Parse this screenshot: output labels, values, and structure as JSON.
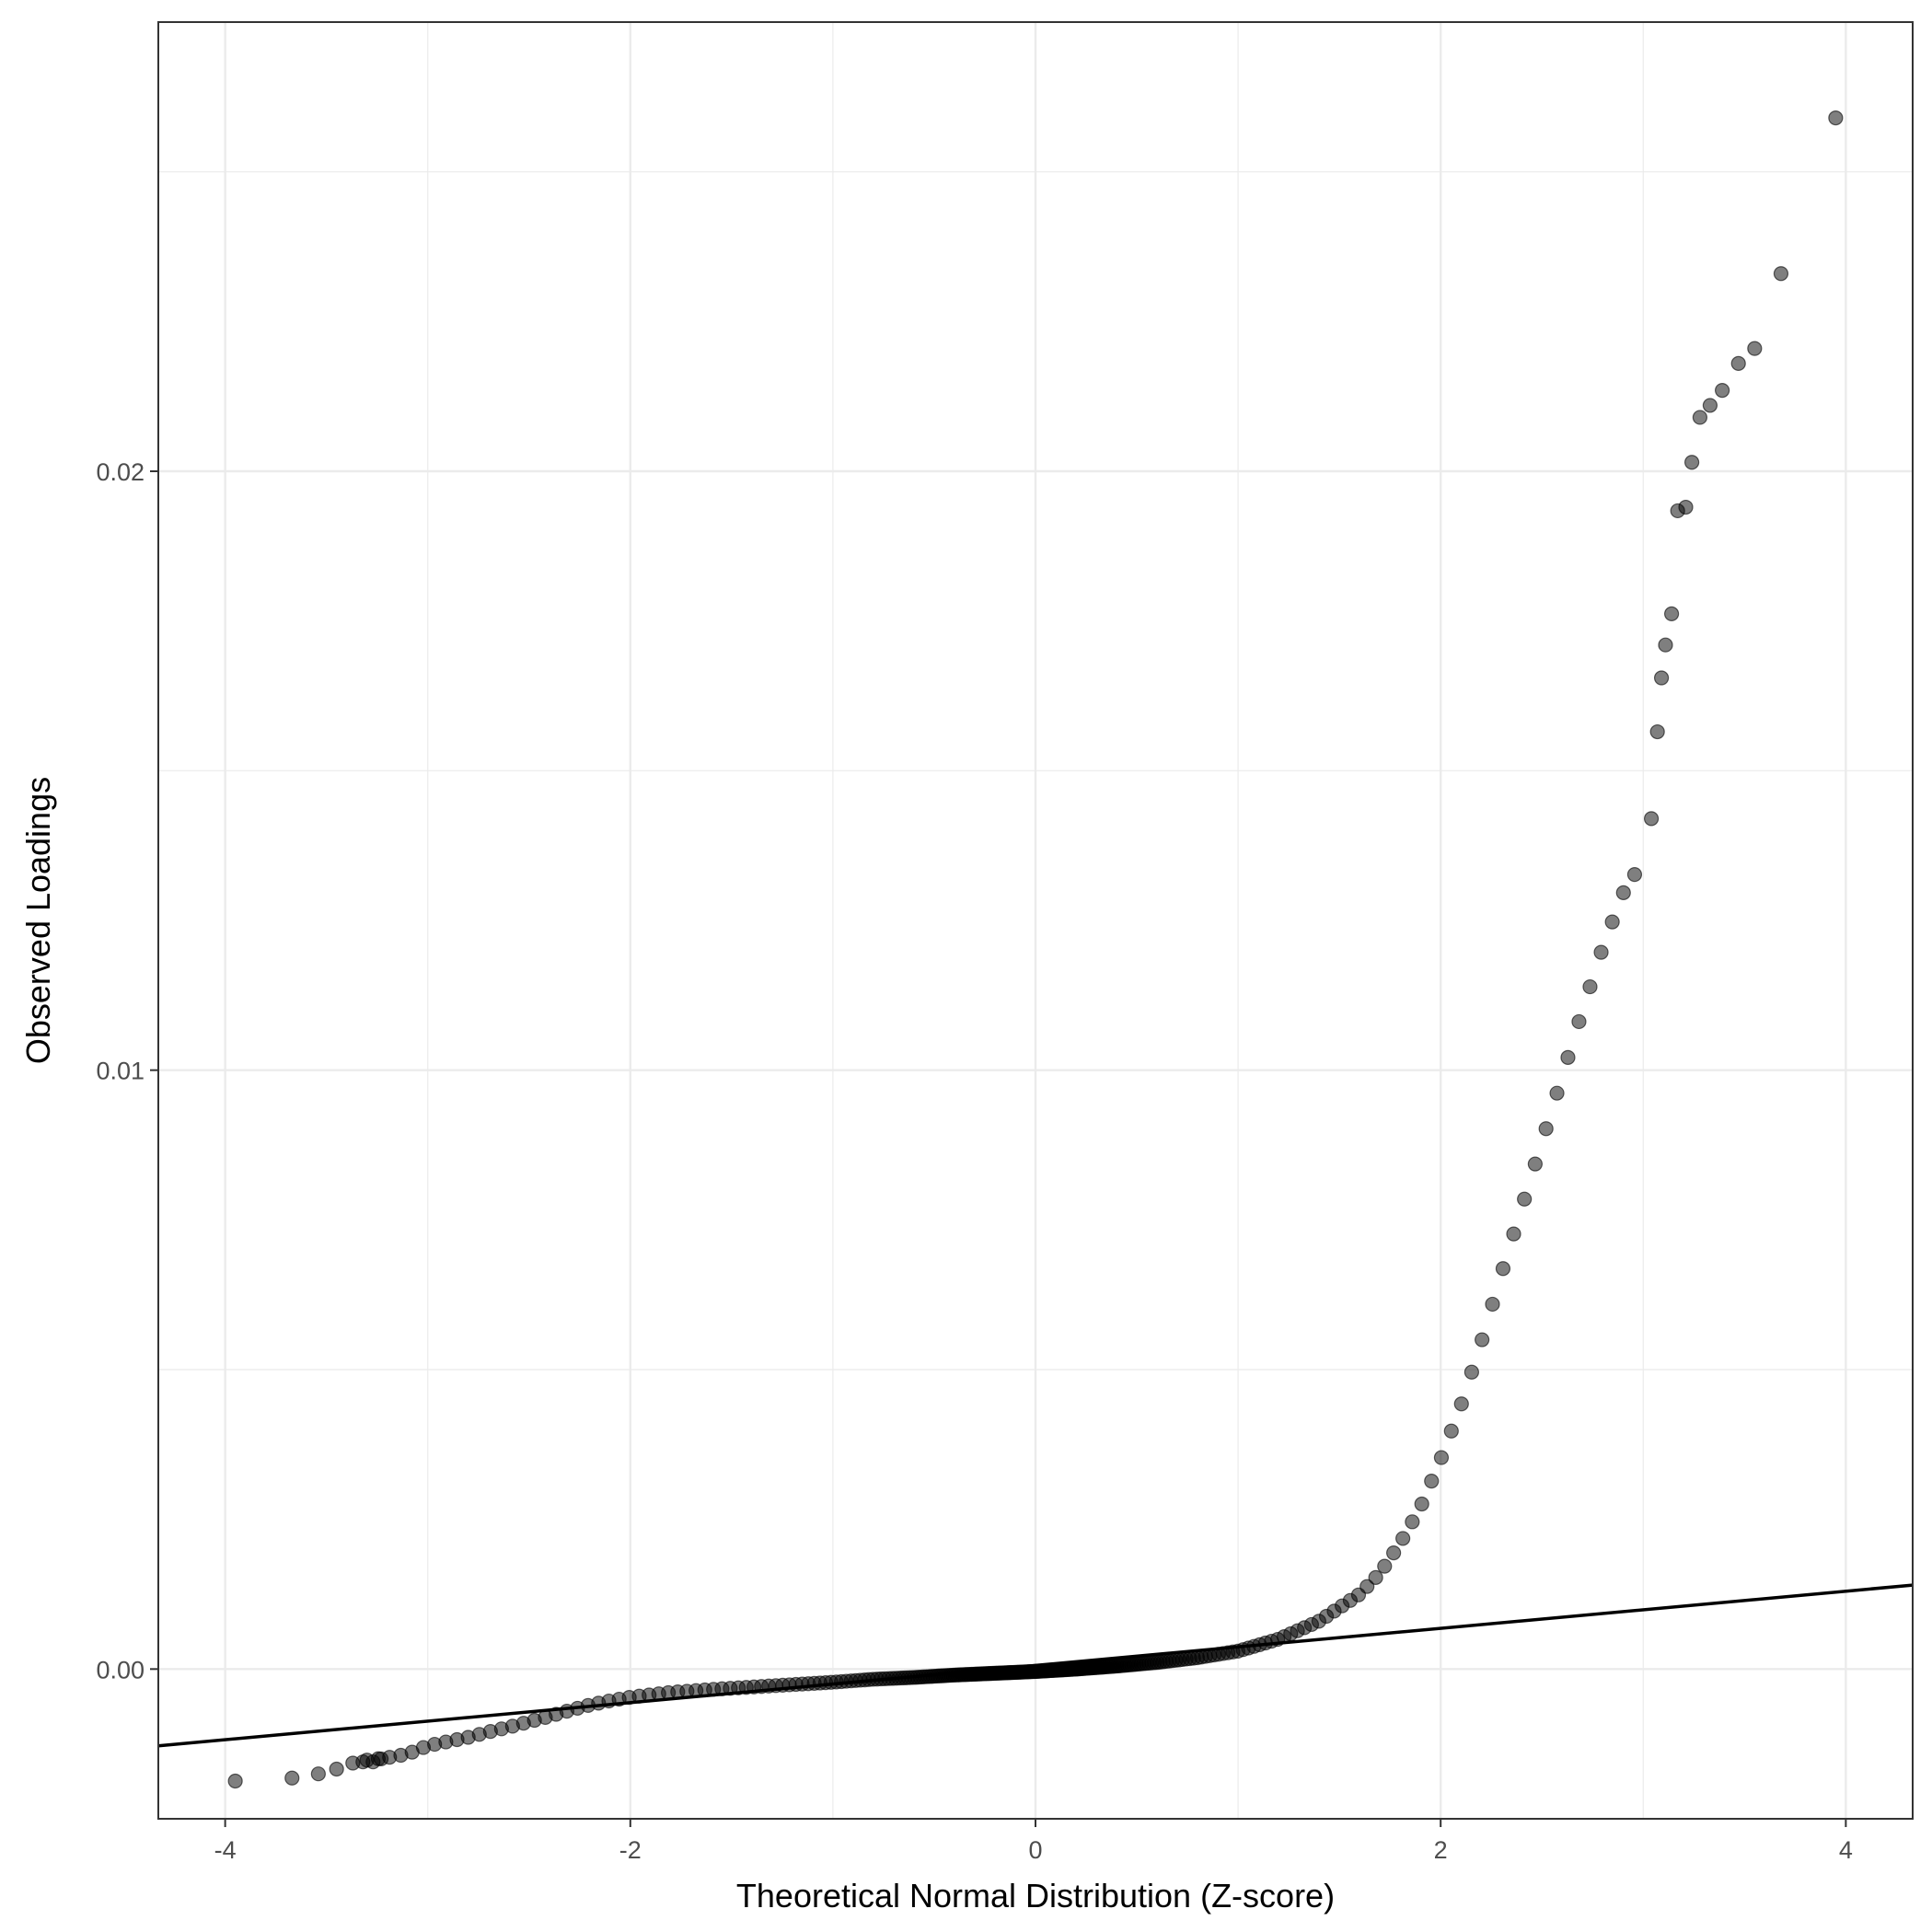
{
  "chart_data": {
    "type": "scatter",
    "title": "",
    "xlabel": "Theoretical Normal Distribution (Z-score)",
    "ylabel": "Observed Loadings",
    "xlim": [
      -4.33,
      4.33
    ],
    "ylim": [
      -0.0025,
      0.0275
    ],
    "x_ticks": [
      -4,
      -2,
      0,
      2,
      4
    ],
    "x_tick_labels": [
      "-4",
      "-2",
      "0",
      "2",
      "4"
    ],
    "y_ticks": [
      0.0,
      0.01,
      0.02
    ],
    "y_tick_labels": [
      "0.00",
      "0.01",
      "0.02"
    ],
    "grid": true,
    "legend": "none",
    "reference_line": {
      "slope": 0.00031,
      "intercept": 6e-05
    },
    "curve": {
      "x_range": [
        -3.3,
        3.0
      ],
      "points": [
        [
          -3.3,
          -0.00152
        ],
        [
          -3.2,
          -0.00148
        ],
        [
          -3.1,
          -0.00142
        ],
        [
          -3.0,
          -0.00128
        ],
        [
          -2.9,
          -0.00121
        ],
        [
          -2.8,
          -0.00114
        ],
        [
          -2.7,
          -0.00105
        ],
        [
          -2.6,
          -0.00097
        ],
        [
          -2.5,
          -0.00088
        ],
        [
          -2.4,
          -0.00079
        ],
        [
          -2.3,
          -0.00069
        ],
        [
          -2.2,
          -0.0006
        ],
        [
          -2.1,
          -0.00053
        ],
        [
          -2.0,
          -0.00047
        ],
        [
          -1.9,
          -0.00043
        ],
        [
          -1.8,
          -0.00039
        ],
        [
          -1.6,
          -0.00034
        ],
        [
          -1.4,
          -0.0003
        ],
        [
          -1.2,
          -0.00026
        ],
        [
          -1.0,
          -0.00022
        ],
        [
          -0.8,
          -0.00017
        ],
        [
          -0.6,
          -0.00014
        ],
        [
          -0.4,
          -0.0001
        ],
        [
          -0.2,
          -7e-05
        ],
        [
          0.0,
          -4e-05
        ],
        [
          0.2,
          0.0
        ],
        [
          0.4,
          5e-05
        ],
        [
          0.6,
          0.00011
        ],
        [
          0.8,
          0.00019
        ],
        [
          1.0,
          0.0003
        ],
        [
          1.2,
          0.0005
        ],
        [
          1.4,
          0.0008
        ],
        [
          1.6,
          0.00125
        ],
        [
          1.7,
          0.0016
        ],
        [
          1.8,
          0.0021
        ],
        [
          1.9,
          0.0027
        ],
        [
          2.0,
          0.0035
        ],
        [
          2.1,
          0.0044
        ],
        [
          2.2,
          0.00545
        ],
        [
          2.3,
          0.0066
        ],
        [
          2.4,
          0.0077
        ],
        [
          2.5,
          0.0088
        ],
        [
          2.6,
          0.0099
        ],
        [
          2.7,
          0.011
        ],
        [
          2.8,
          0.01205
        ],
        [
          2.9,
          0.01295
        ],
        [
          3.0,
          0.0135
        ]
      ]
    },
    "extreme_points": [
      {
        "x": -3.95,
        "y": -0.00187
      },
      {
        "x": -3.67,
        "y": -0.00182
      },
      {
        "x": -3.54,
        "y": -0.00175
      },
      {
        "x": -3.45,
        "y": -0.00167
      },
      {
        "x": -3.37,
        "y": -0.00157
      },
      {
        "x": -3.32,
        "y": -0.00155
      },
      {
        "x": -3.27,
        "y": -0.00155
      },
      {
        "x": -3.23,
        "y": -0.0015
      },
      {
        "x": 3.04,
        "y": 0.0142
      },
      {
        "x": 3.07,
        "y": 0.01565
      },
      {
        "x": 3.09,
        "y": 0.01655
      },
      {
        "x": 3.11,
        "y": 0.0171
      },
      {
        "x": 3.14,
        "y": 0.01762
      },
      {
        "x": 3.17,
        "y": 0.01934
      },
      {
        "x": 3.21,
        "y": 0.0194
      },
      {
        "x": 3.24,
        "y": 0.02015
      },
      {
        "x": 3.28,
        "y": 0.0209
      },
      {
        "x": 3.33,
        "y": 0.0211
      },
      {
        "x": 3.39,
        "y": 0.02135
      },
      {
        "x": 3.47,
        "y": 0.0218
      },
      {
        "x": 3.55,
        "y": 0.02205
      },
      {
        "x": 3.68,
        "y": 0.0233
      },
      {
        "x": 3.95,
        "y": 0.0259
      }
    ],
    "point_color": "#000000",
    "point_opacity": 0.5,
    "line_color": "#000000"
  }
}
